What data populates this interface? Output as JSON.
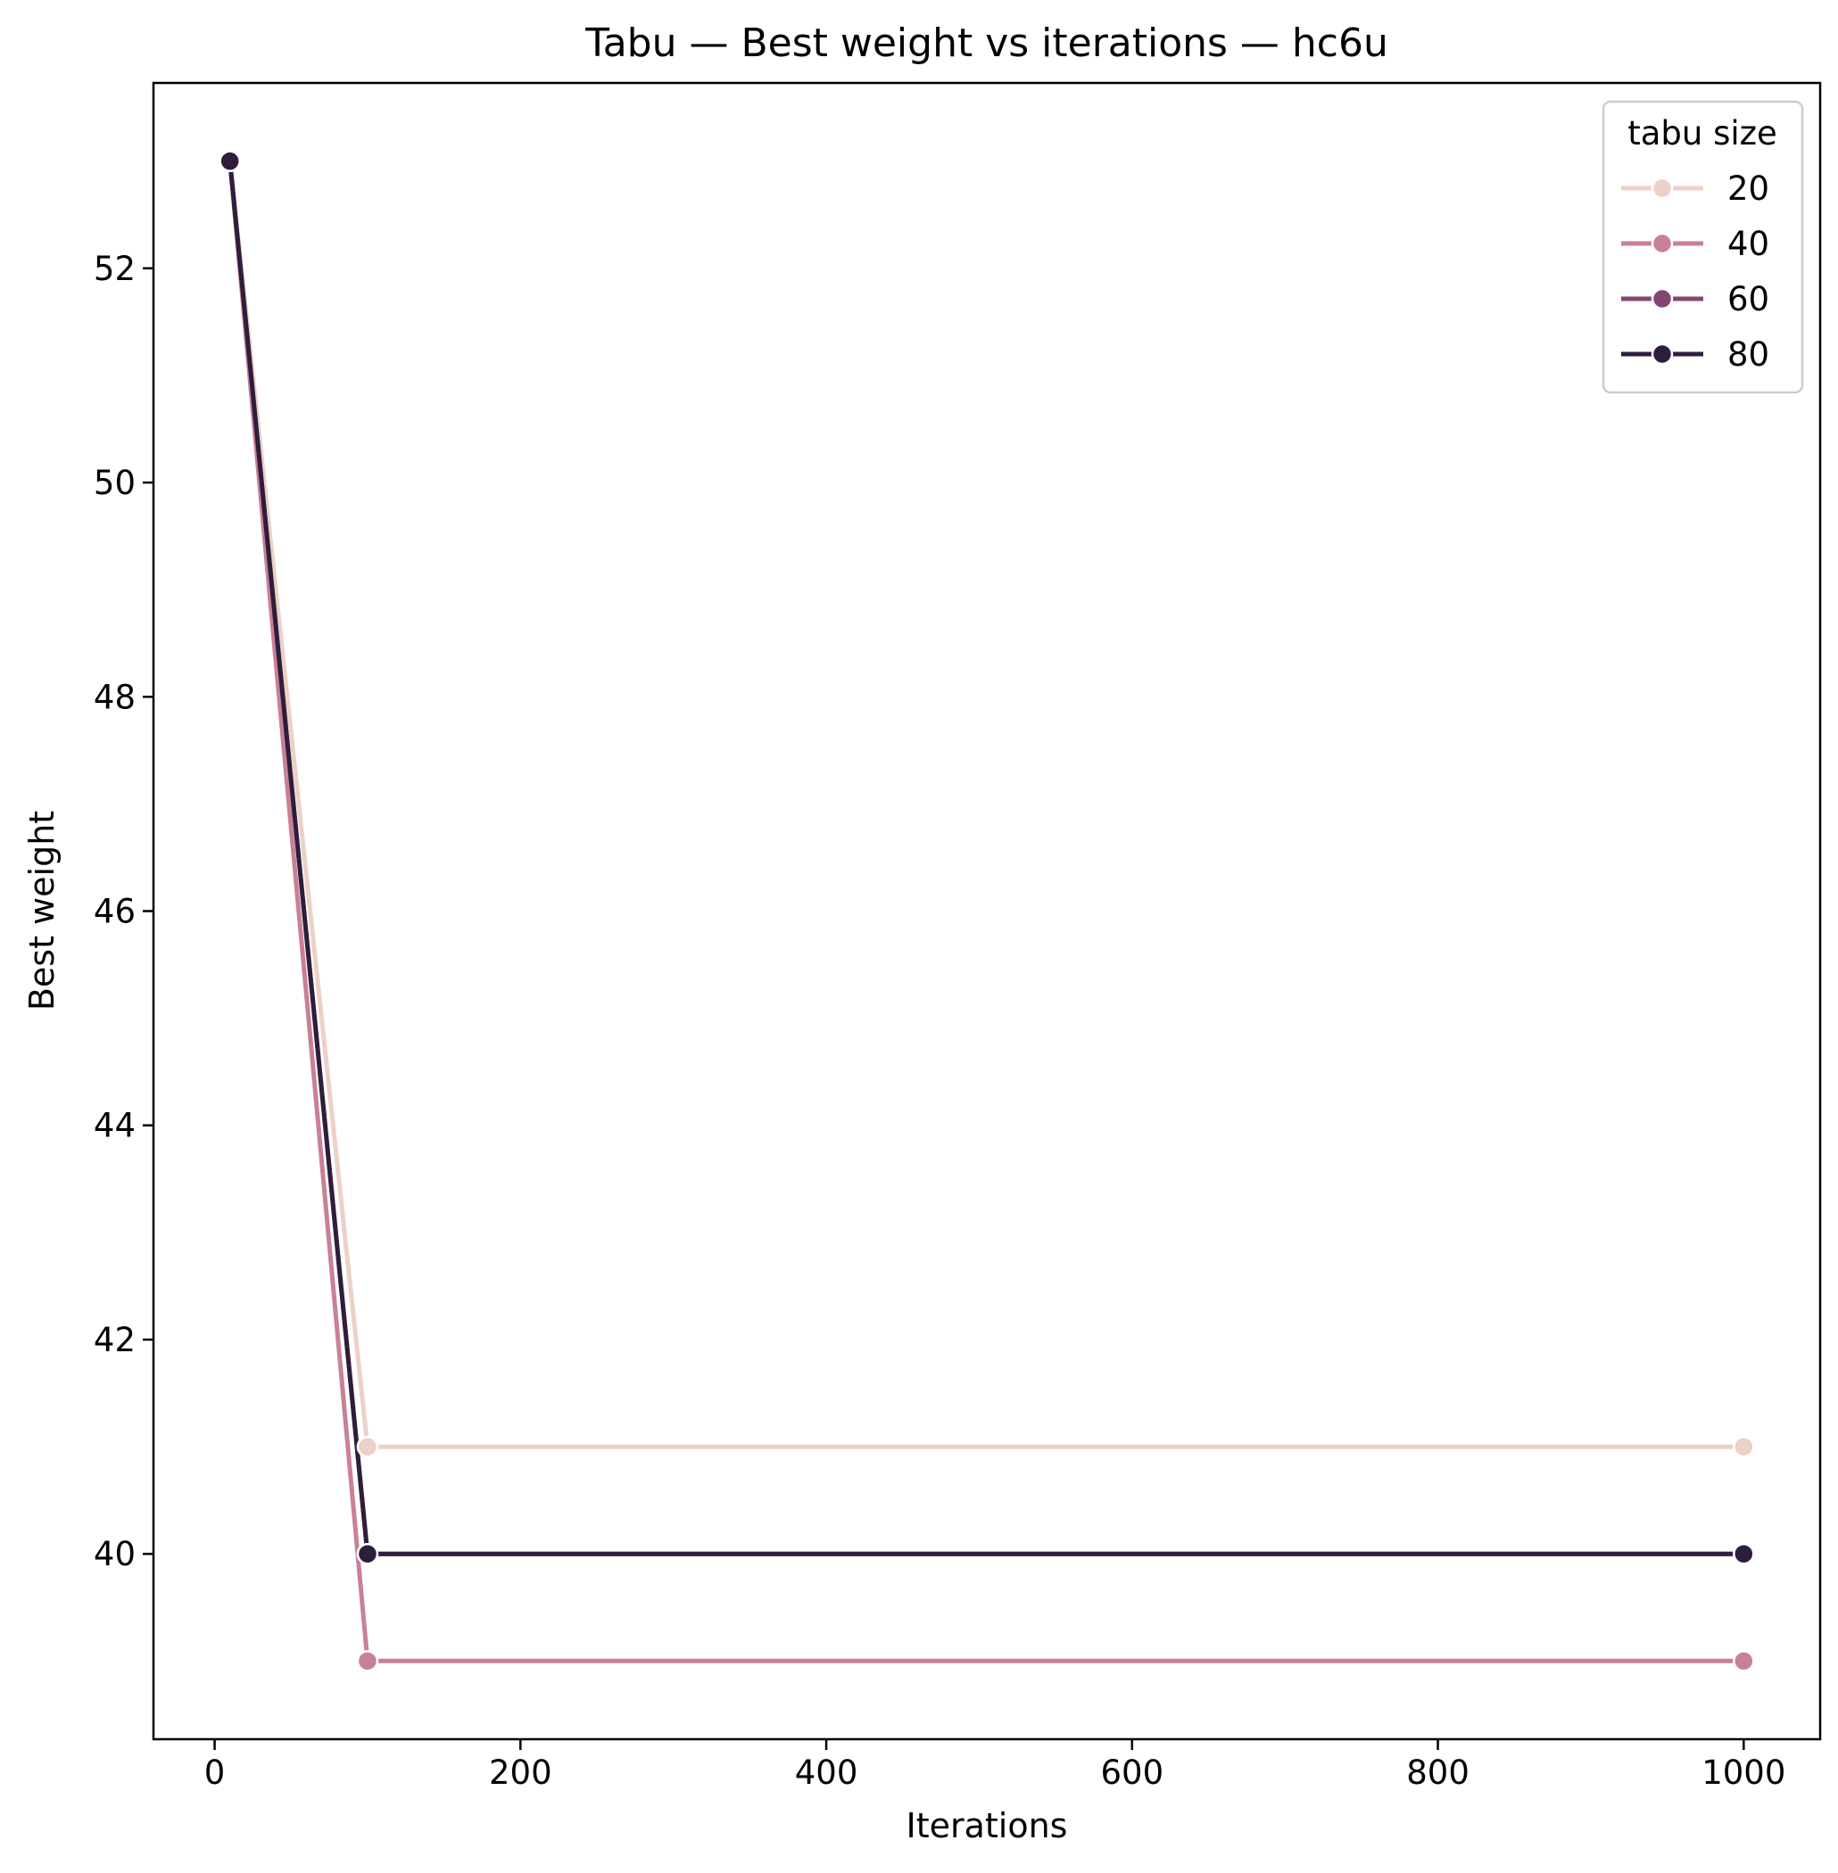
{
  "chart_data": {
    "type": "line",
    "title": "Tabu — Best weight vs iterations — hc6u",
    "xlabel": "Iterations",
    "ylabel": "Best weight",
    "xlim": [
      -40,
      1050
    ],
    "ylim": [
      38.27,
      53.73
    ],
    "x_ticks": [
      0,
      200,
      400,
      600,
      800,
      1000
    ],
    "y_ticks": [
      40,
      42,
      44,
      46,
      48,
      50,
      52
    ],
    "grid": false,
    "legend": {
      "title": "tabu size",
      "placement": "top-right"
    },
    "series": [
      {
        "name": "20",
        "color": "#ebd1c8",
        "x": [
          10,
          100,
          1000
        ],
        "values": [
          53,
          41,
          41
        ]
      },
      {
        "name": "40",
        "color": "#c98097",
        "x": [
          10,
          100,
          1000
        ],
        "values": [
          53,
          39,
          39
        ]
      },
      {
        "name": "60",
        "color": "#834673",
        "x": [
          10,
          100,
          1000
        ],
        "values": [
          53,
          40,
          40
        ]
      },
      {
        "name": "80",
        "color": "#2e1e3c",
        "x": [
          10,
          100,
          1000
        ],
        "values": [
          53,
          40,
          40
        ]
      }
    ]
  }
}
